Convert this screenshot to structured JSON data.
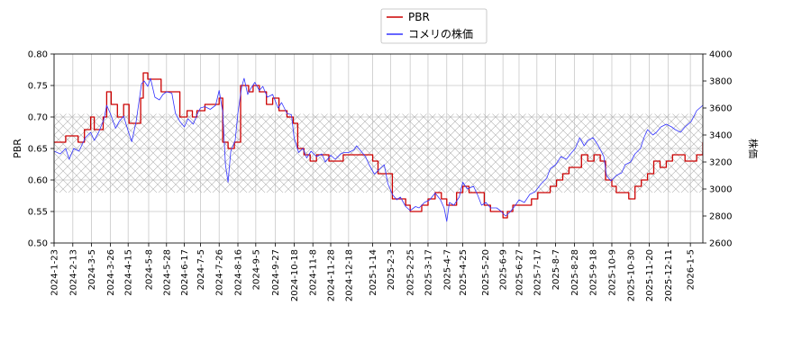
{
  "chart_data": {
    "type": "line",
    "title": "",
    "grid": true,
    "legend_position": "top-center",
    "legend": [
      {
        "name": "PBR",
        "color": "#cc0000"
      },
      {
        "name": "コメリの株価",
        "color": "#3333ff"
      }
    ],
    "xlabel": "",
    "x_ticks": [
      "2024-1-23",
      "2024-2-13",
      "2024-3-5",
      "2024-3-26",
      "2024-4-15",
      "2024-5-8",
      "2024-5-28",
      "2024-6-17",
      "2024-7-5",
      "2024-7-26",
      "2024-8-16",
      "2024-9-5",
      "2024-9-27",
      "2024-10-18",
      "2024-11-8",
      "2024-11-28",
      "2024-12-18",
      "2025-1-14",
      "2025-2-3",
      "2025-2-25",
      "2025-3-17",
      "2025-4-7",
      "2025-4-25",
      "2025-5-20",
      "2025-6-9",
      "2025-6-27",
      "2025-7-17",
      "2025-8-7",
      "2025-8-28",
      "2025-9-18",
      "2025-10-9",
      "2025-10-30",
      "2025-11-20",
      "2025-12-11",
      "2026-1-5"
    ],
    "x_range": [
      "2024-01-23",
      "2026-01-19"
    ],
    "left_axis": {
      "label": "PBR",
      "range": [
        0.5,
        0.8
      ],
      "ticks": [
        "0.50",
        "0.55",
        "0.60",
        "0.65",
        "0.70",
        "0.75",
        "0.80"
      ]
    },
    "right_axis": {
      "label": "株価",
      "range": [
        2600,
        4000
      ],
      "ticks": [
        "2600",
        "2800",
        "3000",
        "3200",
        "3400",
        "3600",
        "3800",
        "4000"
      ]
    },
    "band": {
      "axis": "left",
      "range": [
        0.58,
        0.705
      ],
      "pattern": "crosshatch"
    },
    "series": [
      {
        "name": "PBR",
        "axis": "left",
        "color": "#cc0000",
        "step": true,
        "points": [
          [
            "2024-01-23",
            0.66
          ],
          [
            "2024-01-31",
            0.66
          ],
          [
            "2024-02-05",
            0.67
          ],
          [
            "2024-02-13",
            0.67
          ],
          [
            "2024-02-19",
            0.66
          ],
          [
            "2024-02-26",
            0.68
          ],
          [
            "2024-03-04",
            0.7
          ],
          [
            "2024-03-08",
            0.68
          ],
          [
            "2024-03-14",
            0.68
          ],
          [
            "2024-03-18",
            0.7
          ],
          [
            "2024-03-22",
            0.74
          ],
          [
            "2024-03-27",
            0.72
          ],
          [
            "2024-04-03",
            0.7
          ],
          [
            "2024-04-10",
            0.72
          ],
          [
            "2024-04-16",
            0.69
          ],
          [
            "2024-04-22",
            0.69
          ],
          [
            "2024-04-29",
            0.73
          ],
          [
            "2024-05-02",
            0.77
          ],
          [
            "2024-05-07",
            0.76
          ],
          [
            "2024-05-22",
            0.74
          ],
          [
            "2024-05-29",
            0.74
          ],
          [
            "2024-06-05",
            0.74
          ],
          [
            "2024-06-12",
            0.7
          ],
          [
            "2024-06-20",
            0.71
          ],
          [
            "2024-06-26",
            0.7
          ],
          [
            "2024-07-01",
            0.71
          ],
          [
            "2024-07-10",
            0.72
          ],
          [
            "2024-07-19",
            0.72
          ],
          [
            "2024-07-26",
            0.73
          ],
          [
            "2024-07-30",
            0.66
          ],
          [
            "2024-08-05",
            0.65
          ],
          [
            "2024-08-12",
            0.66
          ],
          [
            "2024-08-19",
            0.75
          ],
          [
            "2024-08-28",
            0.74
          ],
          [
            "2024-09-02",
            0.75
          ],
          [
            "2024-09-09",
            0.74
          ],
          [
            "2024-09-17",
            0.72
          ],
          [
            "2024-09-24",
            0.73
          ],
          [
            "2024-10-01",
            0.71
          ],
          [
            "2024-10-10",
            0.7
          ],
          [
            "2024-10-17",
            0.69
          ],
          [
            "2024-10-22",
            0.65
          ],
          [
            "2024-10-29",
            0.64
          ],
          [
            "2024-11-05",
            0.63
          ],
          [
            "2024-11-12",
            0.64
          ],
          [
            "2024-11-19",
            0.64
          ],
          [
            "2024-11-26",
            0.63
          ],
          [
            "2024-12-05",
            0.63
          ],
          [
            "2024-12-12",
            0.64
          ],
          [
            "2024-12-27",
            0.64
          ],
          [
            "2025-01-07",
            0.64
          ],
          [
            "2025-01-14",
            0.63
          ],
          [
            "2025-01-20",
            0.61
          ],
          [
            "2025-01-28",
            0.61
          ],
          [
            "2025-02-05",
            0.57
          ],
          [
            "2025-02-12",
            0.57
          ],
          [
            "2025-02-20",
            0.56
          ],
          [
            "2025-02-25",
            0.55
          ],
          [
            "2025-03-04",
            0.55
          ],
          [
            "2025-03-10",
            0.56
          ],
          [
            "2025-03-17",
            0.57
          ],
          [
            "2025-03-25",
            0.58
          ],
          [
            "2025-04-01",
            0.57
          ],
          [
            "2025-04-07",
            0.56
          ],
          [
            "2025-04-14",
            0.56
          ],
          [
            "2025-04-18",
            0.58
          ],
          [
            "2025-04-25",
            0.59
          ],
          [
            "2025-05-02",
            0.58
          ],
          [
            "2025-05-12",
            0.58
          ],
          [
            "2025-05-19",
            0.56
          ],
          [
            "2025-05-26",
            0.55
          ],
          [
            "2025-06-02",
            0.55
          ],
          [
            "2025-06-09",
            0.54
          ],
          [
            "2025-06-14",
            0.55
          ],
          [
            "2025-06-20",
            0.56
          ],
          [
            "2025-06-27",
            0.56
          ],
          [
            "2025-07-04",
            0.56
          ],
          [
            "2025-07-11",
            0.57
          ],
          [
            "2025-07-18",
            0.58
          ],
          [
            "2025-07-25",
            0.58
          ],
          [
            "2025-08-01",
            0.59
          ],
          [
            "2025-08-08",
            0.6
          ],
          [
            "2025-08-15",
            0.61
          ],
          [
            "2025-08-22",
            0.62
          ],
          [
            "2025-08-29",
            0.62
          ],
          [
            "2025-09-05",
            0.64
          ],
          [
            "2025-09-12",
            0.63
          ],
          [
            "2025-09-19",
            0.64
          ],
          [
            "2025-09-26",
            0.63
          ],
          [
            "2025-10-02",
            0.6
          ],
          [
            "2025-10-09",
            0.59
          ],
          [
            "2025-10-14",
            0.58
          ],
          [
            "2025-10-21",
            0.58
          ],
          [
            "2025-10-28",
            0.57
          ],
          [
            "2025-11-04",
            0.59
          ],
          [
            "2025-11-11",
            0.6
          ],
          [
            "2025-11-18",
            0.61
          ],
          [
            "2025-11-25",
            0.63
          ],
          [
            "2025-12-02",
            0.62
          ],
          [
            "2025-12-09",
            0.63
          ],
          [
            "2025-12-16",
            0.64
          ],
          [
            "2025-12-23",
            0.64
          ],
          [
            "2025-12-30",
            0.63
          ],
          [
            "2026-01-06",
            0.63
          ],
          [
            "2026-01-12",
            0.64
          ],
          [
            "2026-01-19",
            0.66
          ]
        ]
      },
      {
        "name": "コメリの株価",
        "axis": "right",
        "color": "#3333ff",
        "step": false,
        "points": [
          [
            "2024-01-23",
            3280
          ],
          [
            "2024-01-30",
            3260
          ],
          [
            "2024-02-05",
            3300
          ],
          [
            "2024-02-09",
            3220
          ],
          [
            "2024-02-14",
            3300
          ],
          [
            "2024-02-20",
            3280
          ],
          [
            "2024-02-27",
            3380
          ],
          [
            "2024-03-04",
            3420
          ],
          [
            "2024-03-08",
            3360
          ],
          [
            "2024-03-13",
            3420
          ],
          [
            "2024-03-19",
            3520
          ],
          [
            "2024-03-22",
            3620
          ],
          [
            "2024-03-26",
            3560
          ],
          [
            "2024-04-01",
            3450
          ],
          [
            "2024-04-05",
            3500
          ],
          [
            "2024-04-10",
            3540
          ],
          [
            "2024-04-15",
            3430
          ],
          [
            "2024-04-19",
            3350
          ],
          [
            "2024-04-24",
            3500
          ],
          [
            "2024-04-30",
            3780
          ],
          [
            "2024-05-03",
            3800
          ],
          [
            "2024-05-07",
            3760
          ],
          [
            "2024-05-10",
            3820
          ],
          [
            "2024-05-15",
            3680
          ],
          [
            "2024-05-20",
            3660
          ],
          [
            "2024-05-24",
            3700
          ],
          [
            "2024-05-28",
            3720
          ],
          [
            "2024-06-03",
            3710
          ],
          [
            "2024-06-07",
            3560
          ],
          [
            "2024-06-12",
            3500
          ],
          [
            "2024-06-17",
            3460
          ],
          [
            "2024-06-21",
            3520
          ],
          [
            "2024-06-27",
            3480
          ],
          [
            "2024-07-01",
            3550
          ],
          [
            "2024-07-05",
            3600
          ],
          [
            "2024-07-10",
            3610
          ],
          [
            "2024-07-16",
            3590
          ],
          [
            "2024-07-22",
            3620
          ],
          [
            "2024-07-26",
            3730
          ],
          [
            "2024-07-30",
            3570
          ],
          [
            "2024-08-02",
            3180
          ],
          [
            "2024-08-05",
            3050
          ],
          [
            "2024-08-08",
            3280
          ],
          [
            "2024-08-13",
            3360
          ],
          [
            "2024-08-16",
            3560
          ],
          [
            "2024-08-20",
            3750
          ],
          [
            "2024-08-23",
            3820
          ],
          [
            "2024-08-27",
            3700
          ],
          [
            "2024-08-30",
            3740
          ],
          [
            "2024-09-04",
            3790
          ],
          [
            "2024-09-09",
            3730
          ],
          [
            "2024-09-13",
            3760
          ],
          [
            "2024-09-18",
            3680
          ],
          [
            "2024-09-24",
            3700
          ],
          [
            "2024-09-30",
            3600
          ],
          [
            "2024-10-04",
            3640
          ],
          [
            "2024-10-10",
            3560
          ],
          [
            "2024-10-15",
            3550
          ],
          [
            "2024-10-18",
            3380
          ],
          [
            "2024-10-23",
            3270
          ],
          [
            "2024-10-28",
            3300
          ],
          [
            "2024-11-01",
            3230
          ],
          [
            "2024-11-06",
            3280
          ],
          [
            "2024-11-12",
            3240
          ],
          [
            "2024-11-18",
            3260
          ],
          [
            "2024-11-22",
            3200
          ],
          [
            "2024-11-28",
            3250
          ],
          [
            "2024-12-03",
            3220
          ],
          [
            "2024-12-09",
            3260
          ],
          [
            "2024-12-13",
            3270
          ],
          [
            "2024-12-18",
            3270
          ],
          [
            "2024-12-24",
            3290
          ],
          [
            "2024-12-27",
            3320
          ],
          [
            "2025-01-06",
            3240
          ],
          [
            "2025-01-10",
            3180
          ],
          [
            "2025-01-16",
            3110
          ],
          [
            "2025-01-22",
            3150
          ],
          [
            "2025-01-27",
            3180
          ],
          [
            "2025-01-31",
            3040
          ],
          [
            "2025-02-05",
            2960
          ],
          [
            "2025-02-10",
            2920
          ],
          [
            "2025-02-14",
            2940
          ],
          [
            "2025-02-20",
            2870
          ],
          [
            "2025-02-25",
            2840
          ],
          [
            "2025-03-03",
            2870
          ],
          [
            "2025-03-07",
            2860
          ],
          [
            "2025-03-13",
            2900
          ],
          [
            "2025-03-19",
            2920
          ],
          [
            "2025-03-25",
            2970
          ],
          [
            "2025-03-31",
            2920
          ],
          [
            "2025-04-04",
            2860
          ],
          [
            "2025-04-07",
            2760
          ],
          [
            "2025-04-10",
            2900
          ],
          [
            "2025-04-15",
            2880
          ],
          [
            "2025-04-21",
            2940
          ],
          [
            "2025-04-25",
            3050
          ],
          [
            "2025-04-30",
            3000
          ],
          [
            "2025-05-07",
            3020
          ],
          [
            "2025-05-12",
            2950
          ],
          [
            "2025-05-16",
            2880
          ],
          [
            "2025-05-21",
            2900
          ],
          [
            "2025-05-26",
            2860
          ],
          [
            "2025-06-02",
            2860
          ],
          [
            "2025-06-06",
            2840
          ],
          [
            "2025-06-12",
            2800
          ],
          [
            "2025-06-17",
            2830
          ],
          [
            "2025-06-23",
            2880
          ],
          [
            "2025-06-27",
            2920
          ],
          [
            "2025-07-03",
            2900
          ],
          [
            "2025-07-09",
            2960
          ],
          [
            "2025-07-15",
            2980
          ],
          [
            "2025-07-22",
            3040
          ],
          [
            "2025-07-28",
            3080
          ],
          [
            "2025-08-01",
            3150
          ],
          [
            "2025-08-07",
            3180
          ],
          [
            "2025-08-13",
            3240
          ],
          [
            "2025-08-19",
            3220
          ],
          [
            "2025-08-25",
            3270
          ],
          [
            "2025-08-29",
            3300
          ],
          [
            "2025-09-03",
            3380
          ],
          [
            "2025-09-08",
            3320
          ],
          [
            "2025-09-12",
            3360
          ],
          [
            "2025-09-18",
            3380
          ],
          [
            "2025-09-24",
            3320
          ],
          [
            "2025-09-30",
            3240
          ],
          [
            "2025-10-03",
            3100
          ],
          [
            "2025-10-08",
            3060
          ],
          [
            "2025-10-14",
            3100
          ],
          [
            "2025-10-20",
            3120
          ],
          [
            "2025-10-24",
            3180
          ],
          [
            "2025-10-30",
            3200
          ],
          [
            "2025-11-04",
            3260
          ],
          [
            "2025-11-10",
            3300
          ],
          [
            "2025-11-14",
            3380
          ],
          [
            "2025-11-18",
            3440
          ],
          [
            "2025-11-24",
            3400
          ],
          [
            "2025-11-28",
            3420
          ],
          [
            "2025-12-03",
            3460
          ],
          [
            "2025-12-09",
            3480
          ],
          [
            "2025-12-15",
            3460
          ],
          [
            "2025-12-19",
            3440
          ],
          [
            "2025-12-25",
            3420
          ],
          [
            "2025-12-30",
            3460
          ],
          [
            "2026-01-06",
            3500
          ],
          [
            "2026-01-12",
            3580
          ],
          [
            "2026-01-19",
            3620
          ]
        ]
      }
    ]
  }
}
